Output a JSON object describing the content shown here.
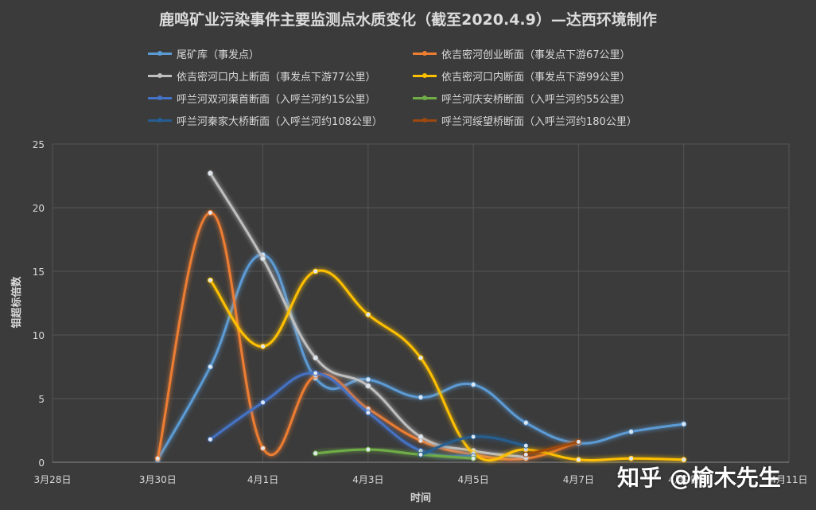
{
  "chart_data": {
    "type": "line",
    "title": "鹿鸣矿业污染事件主要监测点水质变化（截至2020.4.9）—达西环境制作",
    "xlabel": "时间",
    "ylabel": "钼超标倍数",
    "ylim": [
      0,
      25
    ],
    "yticks": [
      0,
      5,
      10,
      15,
      20,
      25
    ],
    "xlim": [
      "2020-03-28",
      "2020-04-11"
    ],
    "xticks": [
      "3月28日",
      "3月30日",
      "4月1日",
      "4月3日",
      "4月5日",
      "4月7日",
      "4月9日",
      "4月11日"
    ],
    "grid": true,
    "legend_position": "top",
    "series": [
      {
        "name": "尾矿库（事发点）",
        "color": "#5b9bd5",
        "x": [
          "2020-03-30",
          "2020-03-31",
          "2020-04-01",
          "2020-04-02",
          "2020-04-03",
          "2020-04-04",
          "2020-04-05",
          "2020-04-06",
          "2020-04-07",
          "2020-04-08",
          "2020-04-09"
        ],
        "y": [
          0.2,
          7.5,
          16.3,
          6.6,
          6.5,
          5.1,
          6.1,
          3.1,
          1.5,
          2.4,
          3.0
        ]
      },
      {
        "name": "依吉密河创业断面（事发点下游67公里）",
        "color": "#ed7d31",
        "x": [
          "2020-03-30",
          "2020-03-31",
          "2020-04-01",
          "2020-04-02",
          "2020-04-03",
          "2020-04-04",
          "2020-04-05",
          "2020-04-06",
          "2020-04-07"
        ],
        "y": [
          0.3,
          19.6,
          1.1,
          6.8,
          4.2,
          1.7,
          0.6,
          0.3,
          1.6
        ]
      },
      {
        "name": "依吉密河口内上断面（事发点下游77公里）",
        "color": "#bfbfbf",
        "x": [
          "2020-03-31",
          "2020-04-01",
          "2020-04-02",
          "2020-04-03",
          "2020-04-04",
          "2020-04-05",
          "2020-04-06"
        ],
        "y": [
          22.7,
          16.0,
          8.2,
          6.0,
          2.0,
          0.9,
          0.4
        ]
      },
      {
        "name": "依吉密河口内断面（事发点下游99公里）",
        "color": "#ffc000",
        "x": [
          "2020-03-31",
          "2020-04-01",
          "2020-04-02",
          "2020-04-03",
          "2020-04-04",
          "2020-04-05",
          "2020-04-06",
          "2020-04-07",
          "2020-04-08",
          "2020-04-09"
        ],
        "y": [
          14.3,
          9.1,
          15.0,
          11.6,
          8.2,
          0.7,
          1.0,
          0.2,
          0.3,
          0.2
        ]
      },
      {
        "name": "呼兰河双河渠首断面（入呼兰河约15公里）",
        "color": "#4472c4",
        "x": [
          "2020-03-31",
          "2020-04-01",
          "2020-04-02",
          "2020-04-03",
          "2020-04-04",
          "2020-04-05"
        ],
        "y": [
          1.8,
          4.7,
          7.0,
          3.9,
          0.9,
          0.5
        ]
      },
      {
        "name": "呼兰河庆安桥断面（入呼兰河约55公里）",
        "color": "#70ad47",
        "x": [
          "2020-04-02",
          "2020-04-03",
          "2020-04-04",
          "2020-04-05"
        ],
        "y": [
          0.7,
          1.0,
          0.6,
          0.3
        ]
      },
      {
        "name": "呼兰河秦家大桥断面（入呼兰河约108公里）",
        "color": "#255e91",
        "x": [
          "2020-04-04",
          "2020-04-05",
          "2020-04-06"
        ],
        "y": [
          0.6,
          2.0,
          1.3
        ]
      },
      {
        "name": "呼兰河绥望桥断面（入呼兰河约180公里）",
        "color": "#9e480e",
        "x": [
          "2020-04-06",
          "2020-04-07"
        ],
        "y": [
          0.6,
          1.6
        ]
      }
    ]
  },
  "watermark": "知乎 @榆木先生"
}
